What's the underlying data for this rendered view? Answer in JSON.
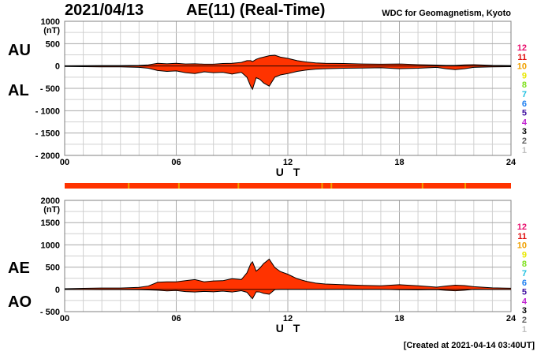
{
  "header": {
    "date": "2021/04/13",
    "title": "AE(11) (Real-Time)",
    "source": "WDC for Geomagnetism, Kyoto",
    "created": "[Created at 2021-04-14 03:40UT]"
  },
  "legend_labels": [
    "12",
    "11",
    "10",
    "9",
    "8",
    "7",
    "6",
    "5",
    "4",
    "3",
    "2",
    "1"
  ],
  "legend_colors": [
    "#e8106e",
    "#e01010",
    "#f0a000",
    "#e8e800",
    "#80e020",
    "#20c0e0",
    "#2080f0",
    "#4010a0",
    "#c020d0",
    "#000000",
    "#606060",
    "#c0c0c0"
  ],
  "fill_color": "#ff3300",
  "chart_data": [
    {
      "type": "area",
      "name": "AU/AL",
      "side_labels": [
        "AU",
        "AL"
      ],
      "unit": "(nT)",
      "xlabel": "U T",
      "xlim": [
        0,
        24
      ],
      "ylim": [
        -2000,
        1000
      ],
      "y_ticks": [
        "1000",
        "500",
        "0",
        "- 500",
        "- 1000",
        "- 1500",
        "- 2000"
      ],
      "x_ticks": [
        "00",
        "06",
        "12",
        "18",
        "24"
      ],
      "grid": true,
      "x": [
        0,
        1,
        2,
        3,
        4,
        4.5,
        5,
        5.5,
        6,
        6.5,
        7,
        7.5,
        8,
        8.5,
        9,
        9.5,
        9.8,
        10,
        10.1,
        10.3,
        10.5,
        10.7,
        11,
        11.3,
        11.6,
        12,
        12.5,
        13,
        13.5,
        14,
        15,
        16,
        17,
        18,
        19,
        20,
        20.5,
        21,
        21.5,
        22,
        23,
        24
      ],
      "series": [
        {
          "name": "AU",
          "values": [
            5,
            8,
            10,
            10,
            15,
            25,
            60,
            50,
            60,
            45,
            50,
            40,
            40,
            55,
            60,
            80,
            120,
            120,
            100,
            150,
            180,
            200,
            230,
            240,
            200,
            170,
            120,
            90,
            70,
            60,
            55,
            45,
            40,
            45,
            30,
            20,
            15,
            15,
            25,
            30,
            15,
            10
          ]
        },
        {
          "name": "AL",
          "values": [
            -10,
            -15,
            -20,
            -20,
            -30,
            -50,
            -100,
            -120,
            -110,
            -150,
            -170,
            -130,
            -150,
            -140,
            -180,
            -140,
            -250,
            -450,
            -520,
            -260,
            -300,
            -380,
            -450,
            -250,
            -200,
            -170,
            -120,
            -90,
            -70,
            -60,
            -50,
            -45,
            -40,
            -60,
            -50,
            -30,
            -60,
            -80,
            -60,
            -30,
            -20,
            -15
          ]
        }
      ]
    },
    {
      "type": "area",
      "name": "AE/AO",
      "side_labels": [
        "AE",
        "AO"
      ],
      "unit": "(nT)",
      "xlabel": "U T",
      "xlim": [
        0,
        24
      ],
      "ylim": [
        -500,
        2000
      ],
      "y_ticks": [
        "2000",
        "1500",
        "1000",
        "500",
        "0",
        "- 500"
      ],
      "x_ticks": [
        "00",
        "06",
        "12",
        "18",
        "24"
      ],
      "grid": true,
      "x": [
        0,
        1,
        2,
        3,
        4,
        4.5,
        5,
        5.5,
        6,
        6.5,
        7,
        7.5,
        8,
        8.5,
        9,
        9.5,
        9.8,
        10,
        10.1,
        10.3,
        10.5,
        10.7,
        11,
        11.3,
        11.6,
        12,
        12.5,
        13,
        13.5,
        14,
        15,
        16,
        17,
        18,
        19,
        20,
        20.5,
        21,
        21.5,
        22,
        23,
        24
      ],
      "series": [
        {
          "name": "AE",
          "values": [
            15,
            23,
            30,
            30,
            45,
            75,
            160,
            170,
            170,
            195,
            220,
            170,
            190,
            195,
            240,
            220,
            370,
            570,
            620,
            410,
            480,
            580,
            680,
            490,
            400,
            340,
            240,
            180,
            140,
            120,
            105,
            90,
            80,
            105,
            80,
            50,
            75,
            95,
            85,
            60,
            35,
            25
          ]
        },
        {
          "name": "AO",
          "values": [
            -2,
            -4,
            -5,
            -5,
            -8,
            -12,
            -20,
            -35,
            -25,
            -50,
            -60,
            -45,
            -55,
            -40,
            -60,
            -30,
            -65,
            -165,
            -210,
            -55,
            -60,
            -90,
            -110,
            -5,
            0,
            0,
            0,
            0,
            0,
            0,
            2,
            0,
            0,
            -8,
            -10,
            -5,
            -22,
            -32,
            -18,
            0,
            -3,
            -3
          ]
        }
      ]
    }
  ]
}
